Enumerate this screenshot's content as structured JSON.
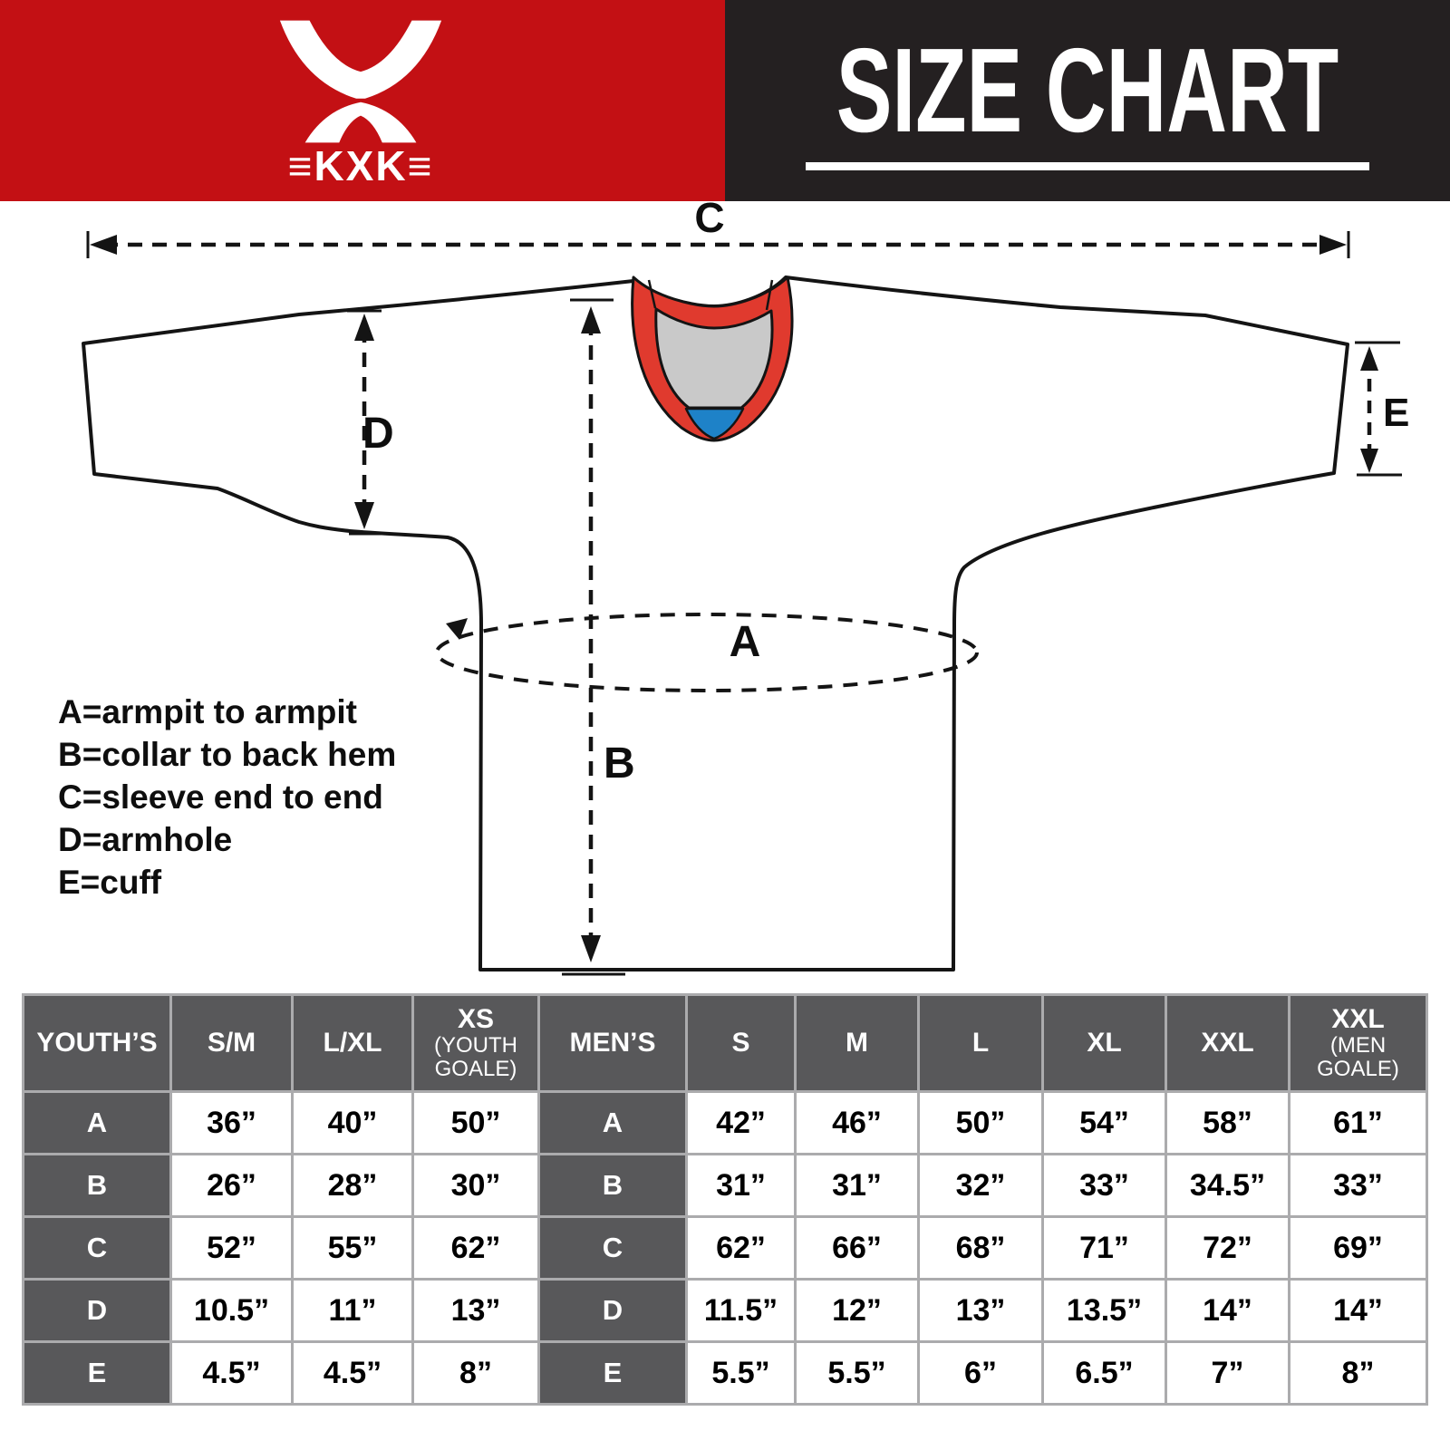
{
  "brand": {
    "name": "KXK",
    "bars": "≡",
    "wordmark": "≡KXK≡",
    "mark_icon": "kxk-hourglass-x-mark"
  },
  "title": "SIZE CHART",
  "colors": {
    "brand_red": "#C31014",
    "header_black": "#242021",
    "collar_red": "#E03A2E",
    "collar_gray": "#C9C9C9",
    "collar_blue": "#1E82C8",
    "table_dark": "#58585A",
    "table_grid": "#ABABAD"
  },
  "diagram": {
    "measure_labels": {
      "a": "A",
      "b": "B",
      "c": "C",
      "d": "D",
      "e": "E"
    },
    "legend": [
      "A=armpit to armpit",
      "B=collar to back hem",
      "C=sleeve end to end",
      "D=armhole",
      "E=cuff"
    ]
  },
  "table": {
    "columns": [
      {
        "label": "YOUTH’S",
        "type": "label"
      },
      {
        "label": "S/M"
      },
      {
        "label": "L/XL"
      },
      {
        "label": "XS",
        "sub": "(YOUTH GOALE)"
      },
      {
        "label": "MEN’S",
        "type": "label"
      },
      {
        "label": "S"
      },
      {
        "label": "M"
      },
      {
        "label": "L"
      },
      {
        "label": "XL"
      },
      {
        "label": "XXL"
      },
      {
        "label": "XXL",
        "sub": "(MEN GOALE)"
      }
    ],
    "rows": [
      {
        "label": "A",
        "youth": [
          "36”",
          "40”",
          "50”"
        ],
        "men": [
          "42”",
          "46”",
          "50”",
          "54”",
          "58”",
          "61”"
        ]
      },
      {
        "label": "B",
        "youth": [
          "26”",
          "28”",
          "30”"
        ],
        "men": [
          "31”",
          "31”",
          "32”",
          "33”",
          "34.5”",
          "33”"
        ]
      },
      {
        "label": "C",
        "youth": [
          "52”",
          "55”",
          "62”"
        ],
        "men": [
          "62”",
          "66”",
          "68”",
          "71”",
          "72”",
          "69”"
        ]
      },
      {
        "label": "D",
        "youth": [
          "10.5”",
          "11”",
          "13”"
        ],
        "men": [
          "11.5”",
          "12”",
          "13”",
          "13.5”",
          "14”",
          "14”"
        ]
      },
      {
        "label": "E",
        "youth": [
          "4.5”",
          "4.5”",
          "8”"
        ],
        "men": [
          "5.5”",
          "5.5”",
          "6”",
          "6.5”",
          "7”",
          "8”"
        ]
      }
    ]
  }
}
